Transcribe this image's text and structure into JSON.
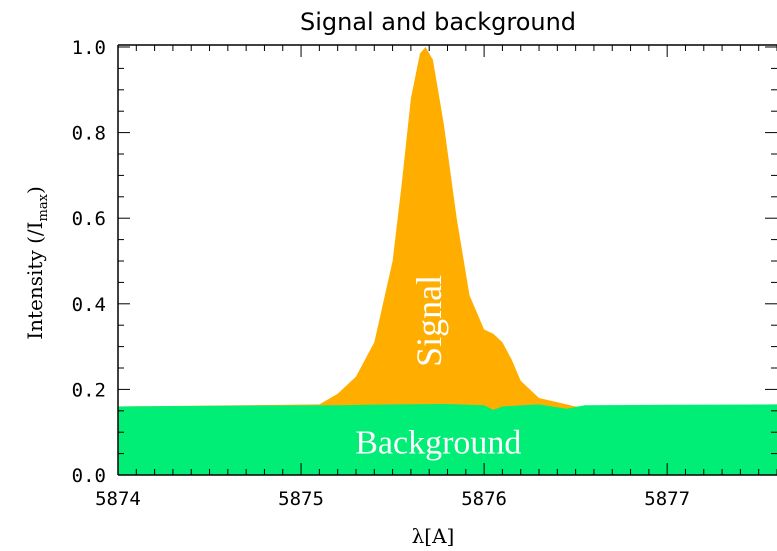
{
  "chart_data": {
    "type": "area",
    "title": "Signal and background",
    "xlabel": "λ[A]",
    "ylabel": {
      "main": "Intensity (/I",
      "sub": "max",
      "close": ")"
    },
    "xlim": [
      5874,
      5877.6
    ],
    "ylim": [
      0.0,
      1.0
    ],
    "x_ticks": [
      "5874",
      "5875",
      "5876",
      "5877"
    ],
    "y_ticks": [
      "0.0",
      "0.2",
      "0.4",
      "0.6",
      "0.8",
      "1.0"
    ],
    "series": [
      {
        "name": "Background",
        "color": "#00ee76",
        "x": [
          5874,
          5874.6,
          5875.2,
          5875.5,
          5875.8,
          5876.0,
          5876.05,
          5876.1,
          5876.3,
          5876.45,
          5876.55,
          5877.0,
          5877.6
        ],
        "y": [
          0.16,
          0.162,
          0.163,
          0.165,
          0.166,
          0.163,
          0.152,
          0.16,
          0.165,
          0.155,
          0.163,
          0.164,
          0.165
        ]
      },
      {
        "name": "Signal",
        "color": "#ffae00",
        "x": [
          5874,
          5875.1,
          5875.2,
          5875.3,
          5875.4,
          5875.5,
          5875.55,
          5875.6,
          5875.65,
          5875.68,
          5875.72,
          5875.78,
          5875.85,
          5875.92,
          5876.0,
          5876.05,
          5876.1,
          5876.15,
          5876.2,
          5876.3,
          5876.45,
          5876.5,
          5877.6
        ],
        "y": [
          0.16,
          0.165,
          0.19,
          0.23,
          0.31,
          0.5,
          0.68,
          0.88,
          0.985,
          1.0,
          0.97,
          0.82,
          0.6,
          0.42,
          0.34,
          0.33,
          0.31,
          0.27,
          0.22,
          0.18,
          0.165,
          0.16,
          0.16
        ]
      }
    ],
    "annotations": {
      "signal": "Signal",
      "background": "Background"
    },
    "grid": false
  }
}
